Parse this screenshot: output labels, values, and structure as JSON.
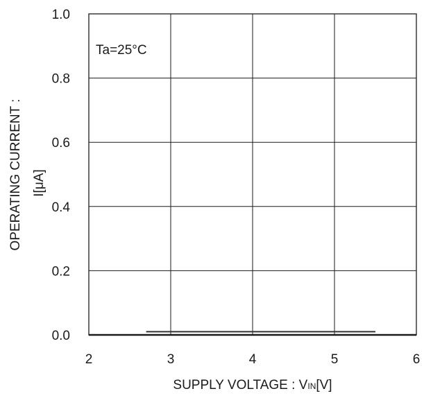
{
  "chart_data": {
    "type": "line",
    "annotation": "Ta=25°C",
    "xlabel_main": "SUPPLY VOLTAGE : V",
    "xlabel_sub": "IN",
    "xlabel_unit": "[V]",
    "ylabel_line1": "OPERATING CURRENT :",
    "ylabel_line2": "I[μA]",
    "xlim": [
      2,
      6
    ],
    "ylim": [
      0,
      1
    ],
    "x_ticks": [
      2,
      3,
      4,
      5,
      6
    ],
    "y_ticks": [
      0,
      0.2,
      0.4,
      0.6,
      0.8,
      1.0
    ],
    "x_tick_labels": [
      "2",
      "3",
      "4",
      "5",
      "6"
    ],
    "y_tick_labels": [
      "0.0",
      "0.2",
      "0.4",
      "0.6",
      "0.8",
      "1.0"
    ],
    "grid": true,
    "series": [
      {
        "x": [
          2.7,
          5.5
        ],
        "y": [
          0.01,
          0.01
        ],
        "color": "#333333"
      }
    ]
  }
}
